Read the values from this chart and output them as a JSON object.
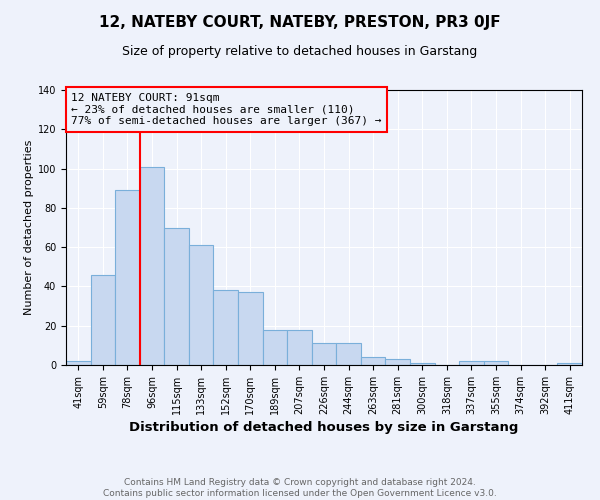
{
  "title": "12, NATEBY COURT, NATEBY, PRESTON, PR3 0JF",
  "subtitle": "Size of property relative to detached houses in Garstang",
  "xlabel": "Distribution of detached houses by size in Garstang",
  "ylabel": "Number of detached properties",
  "categories": [
    "41sqm",
    "59sqm",
    "78sqm",
    "96sqm",
    "115sqm",
    "133sqm",
    "152sqm",
    "170sqm",
    "189sqm",
    "207sqm",
    "226sqm",
    "244sqm",
    "263sqm",
    "281sqm",
    "300sqm",
    "318sqm",
    "337sqm",
    "355sqm",
    "374sqm",
    "392sqm",
    "411sqm"
  ],
  "values": [
    2,
    46,
    89,
    101,
    70,
    61,
    38,
    37,
    18,
    18,
    11,
    11,
    4,
    3,
    1,
    0,
    2,
    2,
    0,
    0,
    1
  ],
  "bar_color": "#c8d8f0",
  "bar_edgecolor": "#7aafda",
  "bar_linewidth": 0.8,
  "vline_color": "red",
  "vline_linewidth": 1.5,
  "vline_pos": 2.5,
  "ylim": [
    0,
    140
  ],
  "yticks": [
    0,
    20,
    40,
    60,
    80,
    100,
    120,
    140
  ],
  "annotation_text": "12 NATEBY COURT: 91sqm\n← 23% of detached houses are smaller (110)\n77% of semi-detached houses are larger (367) →",
  "footer_line1": "Contains HM Land Registry data © Crown copyright and database right 2024.",
  "footer_line2": "Contains public sector information licensed under the Open Government Licence v3.0.",
  "background_color": "#eef2fb",
  "grid_color": "#ffffff",
  "title_fontsize": 11,
  "subtitle_fontsize": 9,
  "xlabel_fontsize": 9.5,
  "ylabel_fontsize": 8,
  "tick_fontsize": 7,
  "annotation_fontsize": 8,
  "footer_fontsize": 6.5
}
